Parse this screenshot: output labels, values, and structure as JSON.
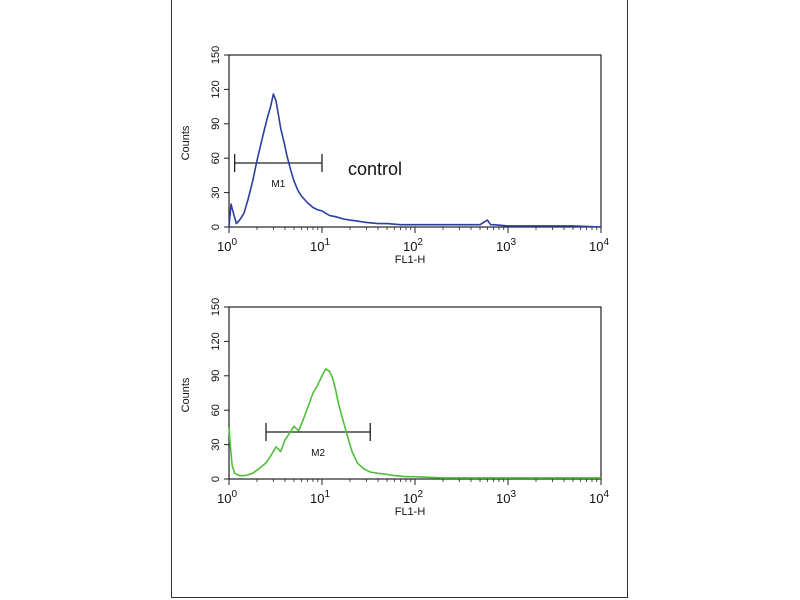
{
  "chart_data": [
    {
      "type": "line",
      "xscale": "log",
      "xlim": [
        1,
        10000
      ],
      "ylim": [
        0,
        150
      ],
      "xlabel": "FL1-H",
      "ylabel": "Counts",
      "x_ticks": [
        "10^0",
        "10^1",
        "10^2",
        "10^3",
        "10^4"
      ],
      "y_ticks": [
        "0",
        "30",
        "60",
        "90",
        "120",
        "150"
      ],
      "annotation": "control",
      "color": "#2a3fa0",
      "marker": {
        "label": "M1",
        "x_range": [
          1.15,
          10
        ]
      },
      "series": [
        {
          "x": [
            1.0,
            1.05,
            1.1,
            1.2,
            1.3,
            1.45,
            1.6,
            1.8,
            2.0,
            2.2,
            2.4,
            2.6,
            2.8,
            3.0,
            3.2,
            3.4,
            3.6,
            3.9,
            4.2,
            4.6,
            5.0,
            5.5,
            6.0,
            7.0,
            8.0,
            9.0,
            10.0,
            12.0,
            14.0,
            17.0,
            20.0,
            25.0,
            30.0,
            40.0,
            50.0,
            70.0,
            100.0,
            200.0,
            500.0,
            600.0,
            650.0,
            700.0,
            1000.0,
            2000.0,
            5000.0,
            10000.0
          ],
          "y": [
            0,
            20,
            14,
            3,
            6,
            12,
            24,
            40,
            58,
            72,
            85,
            96,
            105,
            116,
            110,
            98,
            86,
            74,
            62,
            50,
            40,
            32,
            27,
            21,
            17,
            15,
            14,
            10,
            9,
            7,
            6,
            5,
            4,
            3,
            3,
            2,
            2,
            2,
            2,
            6,
            2,
            2,
            1,
            1,
            1,
            0
          ]
        }
      ]
    },
    {
      "type": "line",
      "xscale": "log",
      "xlim": [
        1,
        10000
      ],
      "ylim": [
        0,
        150
      ],
      "xlabel": "FL1-H",
      "ylabel": "Counts",
      "x_ticks": [
        "10^0",
        "10^1",
        "10^2",
        "10^3",
        "10^4"
      ],
      "y_ticks": [
        "0",
        "30",
        "60",
        "90",
        "120",
        "150"
      ],
      "color": "#4fbf3a",
      "marker": {
        "label": "M2",
        "x_range": [
          2.5,
          33
        ]
      },
      "series": [
        {
          "x": [
            1.0,
            1.03,
            1.08,
            1.15,
            1.3,
            1.5,
            1.8,
            2.1,
            2.5,
            2.8,
            3.2,
            3.6,
            4.0,
            4.5,
            5.0,
            5.6,
            6.3,
            7.0,
            8.0,
            9.0,
            10.0,
            11.0,
            12.0,
            13.0,
            14.0,
            15.0,
            17.0,
            19.0,
            21.0,
            24.0,
            28.0,
            33.0,
            40.0,
            50.0,
            60.0,
            80.0,
            100.0,
            200.0,
            500.0,
            1000.0,
            2000.0,
            5000.0,
            10000.0
          ],
          "y": [
            45,
            30,
            12,
            5,
            3,
            3,
            5,
            9,
            14,
            20,
            28,
            24,
            34,
            40,
            46,
            42,
            52,
            62,
            75,
            82,
            90,
            96,
            94,
            88,
            78,
            66,
            50,
            36,
            24,
            14,
            9,
            6,
            5,
            4,
            3,
            2,
            2,
            1,
            1,
            1,
            1,
            1,
            1
          ]
        }
      ]
    }
  ]
}
